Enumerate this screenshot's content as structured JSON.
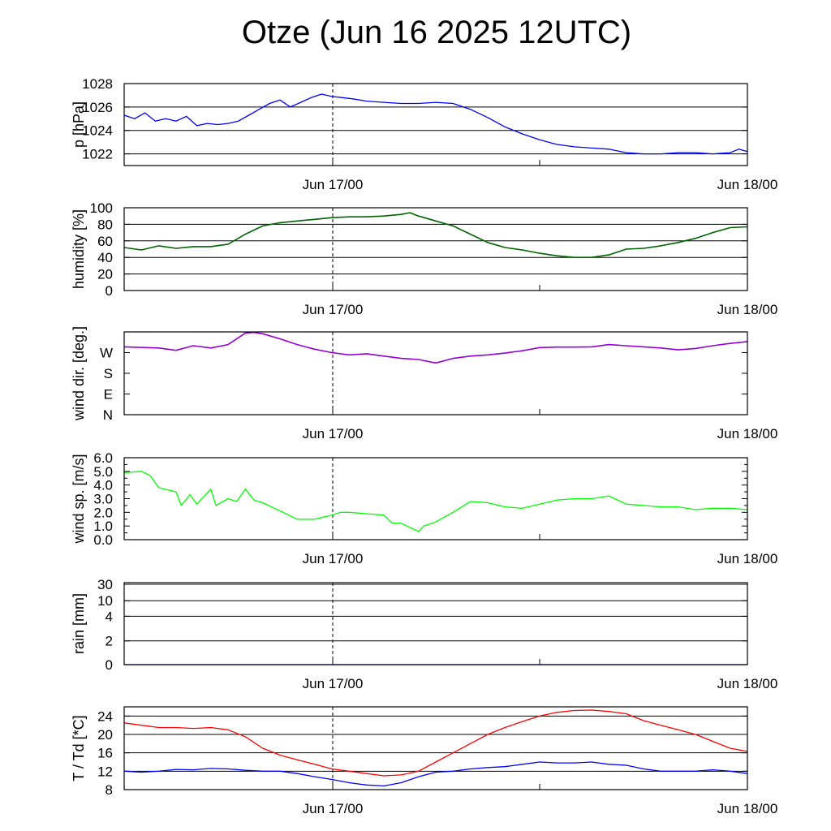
{
  "title": "Otze (Jun 16 2025 12UTC)",
  "chart_data": [
    {
      "type": "line",
      "ylabel": "p [hPa]",
      "x_ticks": [
        "Jun 17/00",
        "Jun 18/00"
      ],
      "yticks": [
        {
          "v": 1022,
          "label": "1022"
        },
        {
          "v": 1024,
          "label": "1024"
        },
        {
          "v": 1026,
          "label": "1026"
        },
        {
          "v": 1028,
          "label": "1028"
        }
      ],
      "ylim": [
        1021,
        1028
      ],
      "scale": "linear",
      "grid": true,
      "x_unit": "hours since Jun 16 12UTC",
      "xlim": [
        0,
        36
      ],
      "series": [
        {
          "color": "#0000ff",
          "x": [
            0,
            0.6,
            1.2,
            1.8,
            2.4,
            3.0,
            3.6,
            4.2,
            4.8,
            5.4,
            6.0,
            6.6,
            7.2,
            7.8,
            8.4,
            9.0,
            9.6,
            10.2,
            10.8,
            11.4,
            12.0,
            12.6,
            13.2,
            14.0,
            15.0,
            16.0,
            17.0,
            18.0,
            19.0,
            20.0,
            21.0,
            22.0,
            23.0,
            24.0,
            25.0,
            26.0,
            27.0,
            28.0,
            29.0,
            30.0,
            31.0,
            32.0,
            33.0,
            34.0,
            35.0,
            35.5,
            36.0
          ],
          "y": [
            1025.3,
            1025.0,
            1025.5,
            1024.8,
            1025.0,
            1024.8,
            1025.2,
            1024.4,
            1024.6,
            1024.5,
            1024.6,
            1024.8,
            1025.3,
            1025.8,
            1026.3,
            1026.6,
            1026.0,
            1026.4,
            1026.8,
            1027.1,
            1026.9,
            1026.8,
            1026.7,
            1026.5,
            1026.4,
            1026.3,
            1026.3,
            1026.4,
            1026.3,
            1025.8,
            1025.1,
            1024.3,
            1023.7,
            1023.2,
            1022.8,
            1022.6,
            1022.5,
            1022.4,
            1022.1,
            1022.0,
            1022.0,
            1022.1,
            1022.1,
            1022.0,
            1022.1,
            1022.4,
            1022.2
          ]
        }
      ]
    },
    {
      "type": "line",
      "ylabel": "humidity [%]",
      "x_ticks": [
        "Jun 17/00",
        "Jun 18/00"
      ],
      "yticks": [
        {
          "v": 0,
          "label": "0"
        },
        {
          "v": 20,
          "label": "20"
        },
        {
          "v": 40,
          "label": "40"
        },
        {
          "v": 60,
          "label": "60"
        },
        {
          "v": 80,
          "label": "80"
        },
        {
          "v": 100,
          "label": "100"
        }
      ],
      "ylim": [
        0,
        100
      ],
      "scale": "linear",
      "grid": true,
      "x_unit": "hours since Jun 16 12UTC",
      "xlim": [
        0,
        36
      ],
      "series": [
        {
          "color": "#006400",
          "x": [
            0,
            1,
            2,
            3,
            4,
            5,
            6,
            6.5,
            7,
            8,
            9,
            10,
            11,
            12,
            13,
            14,
            15,
            16,
            16.5,
            17,
            18,
            19,
            20,
            21,
            22,
            23,
            24,
            25,
            26,
            27,
            28,
            29,
            30,
            31,
            32,
            33,
            34,
            35,
            36
          ],
          "y": [
            52,
            49,
            54,
            51,
            53,
            53,
            56,
            62,
            68,
            78,
            82,
            84,
            86,
            88,
            89,
            89,
            90,
            92,
            94,
            90,
            84,
            78,
            68,
            58,
            52,
            49,
            45,
            42,
            40,
            40,
            43,
            50,
            51,
            54,
            58,
            63,
            70,
            76,
            77
          ]
        }
      ]
    },
    {
      "type": "line",
      "ylabel": "wind dir. [deg.]",
      "x_ticks": [
        "Jun 17/00",
        "Jun 18/00"
      ],
      "yticks": [
        {
          "v": 0,
          "label": "N"
        },
        {
          "v": 90,
          "label": "E"
        },
        {
          "v": 180,
          "label": "S"
        },
        {
          "v": 270,
          "label": "W"
        }
      ],
      "ylim": [
        0,
        360
      ],
      "scale": "linear",
      "grid": false,
      "x_unit": "hours since Jun 16 12UTC",
      "xlim": [
        0,
        36
      ],
      "series": [
        {
          "color": "#9400d3",
          "x": [
            0,
            2,
            3,
            4,
            5,
            6,
            7,
            7.5,
            8,
            9,
            10,
            11,
            12,
            13,
            14,
            15,
            16,
            17,
            18,
            19,
            20,
            21,
            22,
            23,
            24,
            25,
            26,
            27,
            28,
            29,
            30,
            31,
            32,
            33,
            34,
            35,
            36
          ],
          "y": [
            295,
            290,
            280,
            300,
            290,
            305,
            355,
            358,
            352,
            330,
            305,
            285,
            270,
            260,
            265,
            255,
            245,
            240,
            225,
            245,
            255,
            260,
            268,
            278,
            292,
            294,
            294,
            295,
            305,
            300,
            295,
            290,
            282,
            288,
            300,
            310,
            318
          ]
        }
      ]
    },
    {
      "type": "line",
      "ylabel": "wind sp. [m/s]",
      "x_ticks": [
        "Jun 17/00",
        "Jun 18/00"
      ],
      "yticks": [
        {
          "v": 0,
          "label": "0.0"
        },
        {
          "v": 1,
          "label": "1.0"
        },
        {
          "v": 2,
          "label": "2.0"
        },
        {
          "v": 3,
          "label": "3.0"
        },
        {
          "v": 4,
          "label": "4.0"
        },
        {
          "v": 5,
          "label": "5.0"
        },
        {
          "v": 6,
          "label": "6.0"
        }
      ],
      "ylim": [
        0,
        6
      ],
      "scale": "linear",
      "grid": false,
      "x_unit": "hours since Jun 16 12UTC",
      "xlim": [
        0,
        36
      ],
      "series": [
        {
          "color": "#00ff00",
          "x": [
            0,
            1,
            1.5,
            2,
            3,
            3.3,
            3.8,
            4.2,
            5,
            5.3,
            6,
            6.5,
            7,
            7.5,
            8,
            9,
            10,
            11,
            12,
            12.5,
            13,
            14,
            15,
            15.5,
            16,
            17,
            17.3,
            18,
            19,
            20,
            21,
            22,
            23,
            24,
            25,
            26,
            27,
            28,
            29,
            30,
            31,
            32,
            33,
            34,
            35,
            36
          ],
          "y": [
            4.9,
            5.0,
            4.7,
            3.8,
            3.5,
            2.5,
            3.3,
            2.6,
            3.7,
            2.5,
            3.0,
            2.8,
            3.7,
            2.9,
            2.7,
            2.1,
            1.5,
            1.5,
            1.8,
            2.0,
            2.0,
            1.9,
            1.8,
            1.2,
            1.2,
            0.6,
            1.0,
            1.3,
            2.0,
            2.8,
            2.7,
            2.4,
            2.3,
            2.6,
            2.9,
            3.0,
            3.0,
            3.2,
            2.6,
            2.5,
            2.4,
            2.4,
            2.2,
            2.3,
            2.3,
            2.2
          ]
        }
      ]
    },
    {
      "type": "line",
      "ylabel": "rain [mm]",
      "x_ticks": [
        "Jun 17/00",
        "Jun 18/00"
      ],
      "yticks": [
        {
          "v": 0,
          "label": "0"
        },
        {
          "v": 2,
          "label": "2"
        },
        {
          "v": 4,
          "label": "4"
        },
        {
          "v": 10,
          "label": "10"
        },
        {
          "v": 30,
          "label": "30"
        }
      ],
      "ylim": [
        0,
        30
      ],
      "scale": "custom",
      "grid": true,
      "x_unit": "hours since Jun 16 12UTC",
      "xlim": [
        0,
        36
      ],
      "series": [
        {
          "color": "#0000ff",
          "x": [
            0,
            36
          ],
          "y": [
            0,
            0
          ]
        }
      ]
    },
    {
      "type": "line",
      "ylabel": "T / Td [*C]",
      "x_ticks": [
        "Jun 17/00",
        "Jun 18/00"
      ],
      "yticks": [
        {
          "v": 8,
          "label": "8"
        },
        {
          "v": 12,
          "label": "12"
        },
        {
          "v": 16,
          "label": "16"
        },
        {
          "v": 20,
          "label": "20"
        },
        {
          "v": 24,
          "label": "24"
        }
      ],
      "ylim": [
        8,
        26
      ],
      "scale": "linear",
      "grid": true,
      "x_unit": "hours since Jun 16 12UTC",
      "xlim": [
        0,
        36
      ],
      "series": [
        {
          "color": "#ff0000",
          "x": [
            0,
            1,
            2,
            3,
            4,
            5,
            6,
            7,
            8,
            9,
            10,
            11,
            12,
            13,
            14,
            15,
            16,
            17,
            18,
            19,
            20,
            21,
            22,
            23,
            24,
            25,
            26,
            27,
            28,
            29,
            30,
            31,
            32,
            33,
            34,
            35,
            36
          ],
          "y": [
            22.5,
            22.0,
            21.5,
            21.5,
            21.3,
            21.5,
            21.0,
            19.5,
            17.0,
            15.5,
            14.5,
            13.5,
            12.5,
            12.0,
            11.5,
            11.0,
            11.2,
            12.0,
            14.0,
            16.0,
            18.0,
            20.0,
            21.5,
            22.8,
            24.0,
            24.8,
            25.2,
            25.3,
            25.0,
            24.5,
            23.0,
            22.0,
            21.0,
            20.0,
            18.5,
            17.0,
            16.3
          ]
        },
        {
          "color": "#0000ff",
          "x": [
            0,
            1,
            2,
            3,
            4,
            5,
            6,
            7,
            8,
            9,
            10,
            11,
            12,
            13,
            14,
            15,
            16,
            17,
            18,
            19,
            20,
            21,
            22,
            23,
            24,
            25,
            26,
            27,
            28,
            29,
            30,
            31,
            32,
            33,
            34,
            35,
            36
          ],
          "y": [
            12.0,
            11.8,
            12.0,
            12.4,
            12.3,
            12.6,
            12.5,
            12.2,
            12.0,
            12.0,
            11.5,
            10.8,
            10.2,
            9.5,
            9.0,
            8.8,
            9.5,
            10.8,
            11.8,
            12.0,
            12.5,
            12.8,
            13.0,
            13.5,
            14.0,
            13.8,
            13.8,
            14.0,
            13.5,
            13.3,
            12.5,
            12.0,
            12.0,
            12.0,
            12.3,
            12.0,
            11.5
          ]
        }
      ]
    }
  ]
}
